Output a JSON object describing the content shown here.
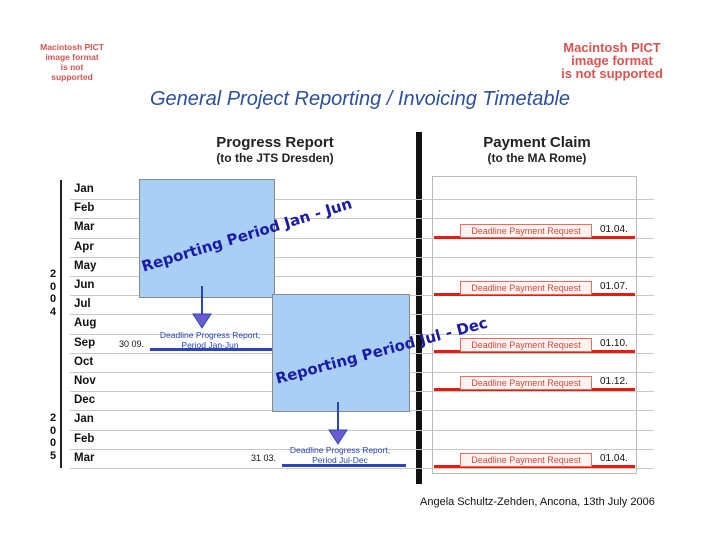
{
  "pict_placeholders": {
    "small": [
      "Macintosh PICT",
      "image format",
      "is not supported"
    ],
    "large": [
      "Macintosh PICT",
      "image format",
      "is not supported"
    ]
  },
  "title": "General Project Reporting / Invoicing Timetable",
  "progress_report": {
    "heading": "Progress Report",
    "subheading": "(to the JTS Dresden)",
    "periods": [
      {
        "label": "Reporting Period Jan - Jun",
        "deadline_text": [
          "Deadline Progress Report,",
          "Period Jan-Jun"
        ],
        "deadline_date": "30 09."
      },
      {
        "label": "Reporting Period Jul - Dec",
        "deadline_text": [
          "Deadline Progress Report,",
          "Period Jul-Dec"
        ],
        "deadline_date": "31 03."
      }
    ]
  },
  "payment_claim": {
    "heading": "Payment Claim",
    "subheading": "(to the MA Rome)",
    "requests": [
      {
        "label": "Deadline Payment Request",
        "date": "01.04."
      },
      {
        "label": "Deadline Payment Request",
        "date": "01.07."
      },
      {
        "label": "Deadline Payment Request",
        "date": "01.10."
      },
      {
        "label": "Deadline Payment Request",
        "date": "01.12."
      },
      {
        "label": "Deadline Payment Request",
        "date": "01.04."
      }
    ]
  },
  "months": [
    "Jan",
    "Feb",
    "Mar",
    "Apr",
    "May",
    "Jun",
    "Jul",
    "Aug",
    "Sep",
    "Oct",
    "Nov",
    "Dec",
    "Jan",
    "Feb",
    "Mar"
  ],
  "years": [
    {
      "digits": [
        "2",
        "0",
        "0",
        "4"
      ]
    },
    {
      "digits": [
        "2",
        "0",
        "0",
        "5"
      ]
    }
  ],
  "footer": "Angela Schultz-Zehden, Ancona, 13th July 2006",
  "colors": {
    "title": "#2b4fa0",
    "period_fill": "#a9cff5",
    "payment_line": "#e51c0f",
    "progress_line": "#2a46b8",
    "rotated_text": "#1a1aa8"
  }
}
